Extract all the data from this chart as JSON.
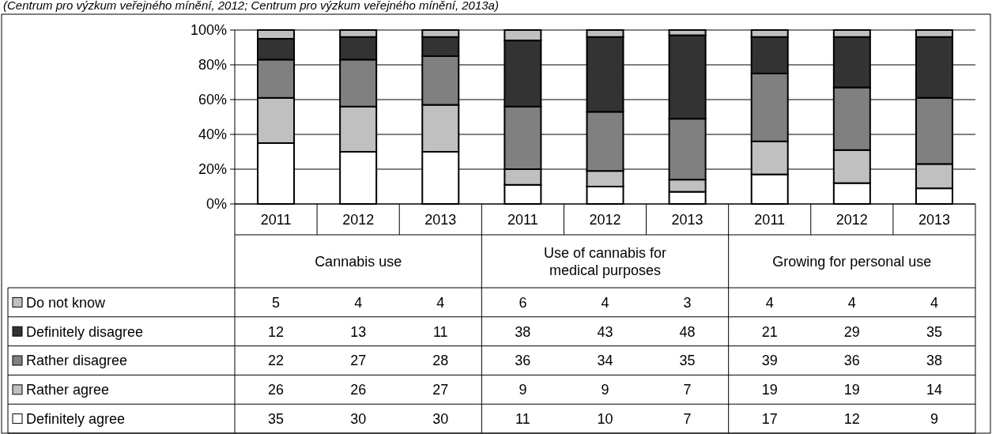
{
  "chart_data": {
    "type": "bar",
    "stacked": true,
    "data_labels": true,
    "grid": "y",
    "legend": "bottom left",
    "categories": [
      "2011",
      "2012",
      "2013",
      "2011",
      "2012",
      "2013",
      "2011",
      "2012",
      "2013"
    ],
    "series": [
      {
        "name": "Definitely agree",
        "color": "#ffffff",
        "values": [
          35,
          30,
          30,
          11,
          10,
          7,
          17,
          12,
          9
        ]
      },
      {
        "name": "Rather agree",
        "color": "#c0c0c0",
        "values": [
          26,
          26,
          27,
          9,
          9,
          7,
          19,
          19,
          14
        ]
      },
      {
        "name": "Rather disagree",
        "color": "#808080",
        "values": [
          22,
          27,
          28,
          36,
          34,
          35,
          39,
          36,
          38
        ]
      },
      {
        "name": "Definitely disagree",
        "color": "#333333",
        "values": [
          12,
          13,
          11,
          38,
          43,
          48,
          21,
          29,
          35
        ]
      },
      {
        "name": "Do not know",
        "color": "#c0c0c0",
        "values": [
          5,
          4,
          4,
          6,
          4,
          3,
          4,
          4,
          4
        ]
      }
    ],
    "ylim": [
      0,
      100
    ],
    "yticks": [
      {
        "value": 0,
        "label": "0%"
      },
      {
        "value": 20,
        "label": "20%"
      },
      {
        "value": 40,
        "label": "40%"
      },
      {
        "value": 60,
        "label": "60%"
      },
      {
        "value": 80,
        "label": "80%"
      },
      {
        "value": 100,
        "label": "100%"
      }
    ],
    "annotations": [
      "(Centrum pro výzkum veřejného mínění, 2012; Centrum pro výzkum veřejného mínění, 2013a)",
      "Cannabis use",
      "Use of cannabis for medical purposes",
      "Growing for personal use"
    ]
  }
}
